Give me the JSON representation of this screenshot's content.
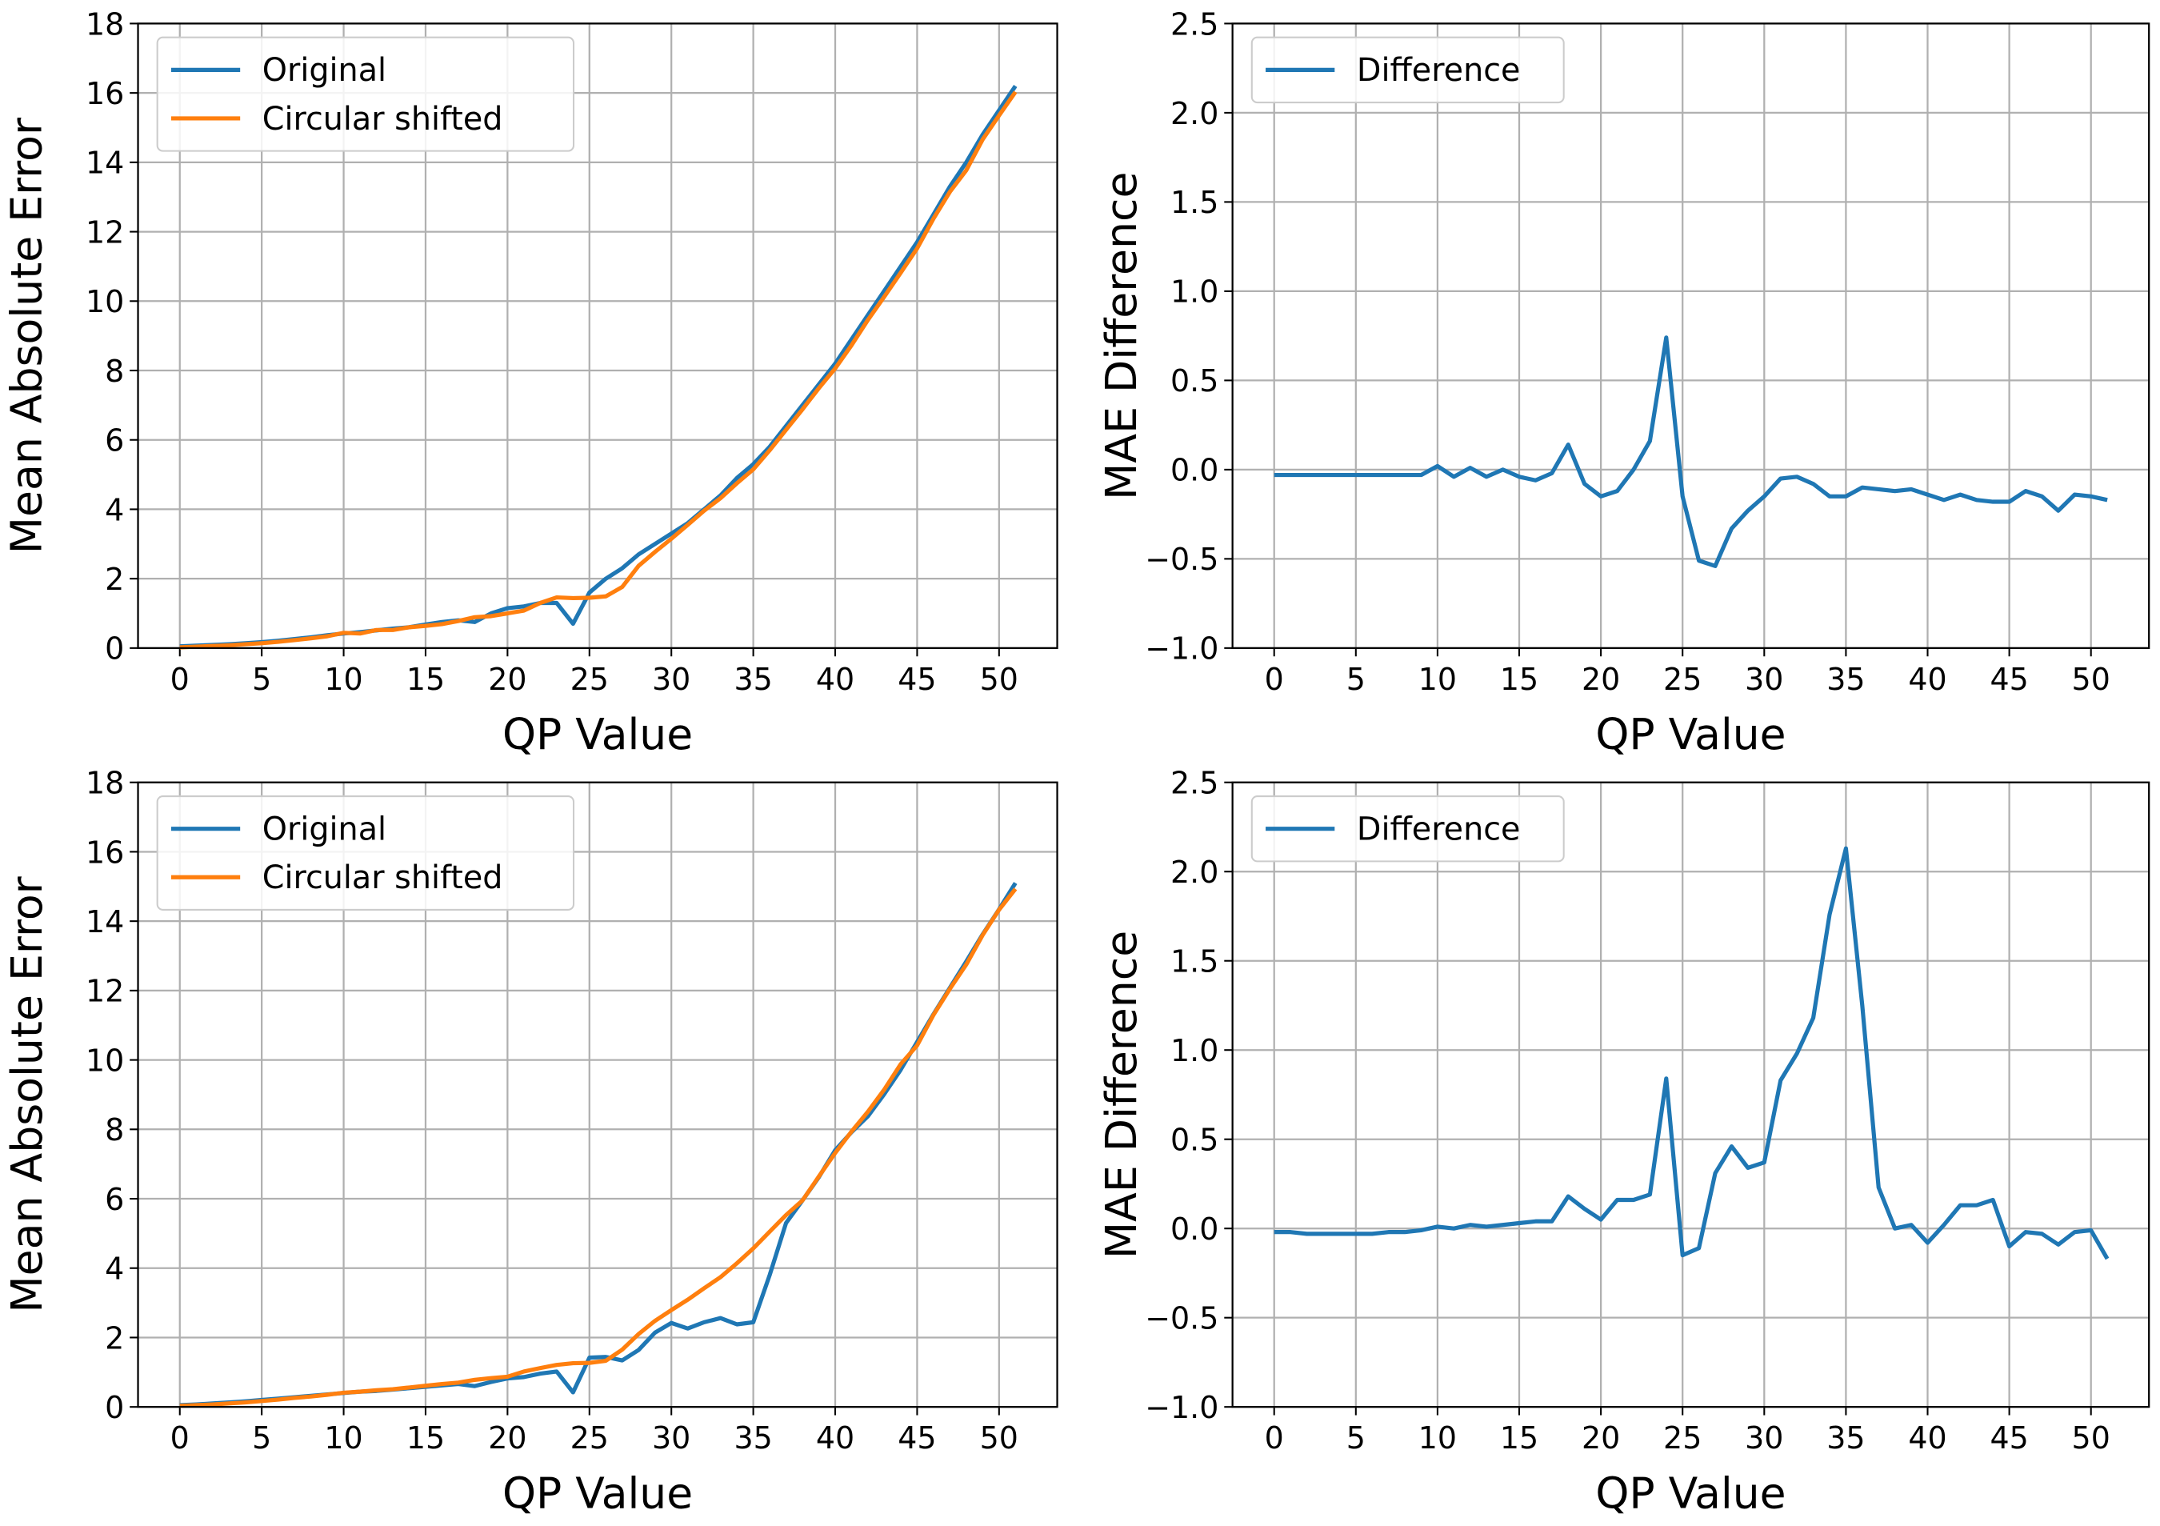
{
  "chart_data": [
    {
      "type": "line",
      "xlabel": "QP Value",
      "ylabel": "Mean Absolute Error",
      "x": [
        0,
        1,
        2,
        3,
        4,
        5,
        6,
        7,
        8,
        9,
        10,
        11,
        12,
        13,
        14,
        15,
        16,
        17,
        18,
        19,
        20,
        21,
        22,
        23,
        24,
        25,
        26,
        27,
        28,
        29,
        30,
        31,
        32,
        33,
        34,
        35,
        36,
        37,
        38,
        39,
        40,
        41,
        42,
        43,
        44,
        45,
        46,
        47,
        48,
        49,
        50,
        51
      ],
      "series": [
        {
          "name": "Original",
          "color": "#1f77b4",
          "values": [
            0.05,
            0.07,
            0.09,
            0.11,
            0.14,
            0.17,
            0.21,
            0.26,
            0.31,
            0.37,
            0.42,
            0.46,
            0.51,
            0.56,
            0.6,
            0.68,
            0.75,
            0.8,
            0.75,
            1.0,
            1.15,
            1.2,
            1.3,
            1.3,
            0.7,
            1.6,
            2.0,
            2.3,
            2.7,
            3.0,
            3.3,
            3.6,
            4.0,
            4.4,
            4.9,
            5.3,
            5.8,
            6.4,
            7.0,
            7.6,
            8.2,
            8.9,
            9.6,
            10.3,
            11.0,
            11.7,
            12.5,
            13.3,
            14.0,
            14.8,
            15.5,
            16.2
          ]
        },
        {
          "name": "Circular shifted",
          "color": "#ff7f0e",
          "values": [
            0.02,
            0.04,
            0.06,
            0.08,
            0.11,
            0.14,
            0.18,
            0.23,
            0.28,
            0.34,
            0.44,
            0.42,
            0.52,
            0.52,
            0.6,
            0.64,
            0.69,
            0.78,
            0.89,
            0.92,
            1.0,
            1.08,
            1.3,
            1.46,
            1.44,
            1.45,
            1.49,
            1.76,
            2.37,
            2.77,
            3.15,
            3.55,
            3.96,
            4.32,
            4.75,
            5.15,
            5.7,
            6.29,
            6.88,
            7.49,
            8.06,
            8.73,
            9.46,
            10.13,
            10.82,
            11.52,
            12.38,
            13.15,
            13.77,
            14.66,
            15.35,
            16.03
          ]
        }
      ],
      "xlim": [
        -2.55,
        53.55
      ],
      "ylim": [
        0,
        18
      ],
      "xticks": [
        0,
        5,
        10,
        15,
        20,
        25,
        30,
        35,
        40,
        45,
        50
      ],
      "yticks": [
        0,
        2,
        4,
        6,
        8,
        10,
        12,
        14,
        16,
        18
      ],
      "grid": true,
      "legend": "upper left"
    },
    {
      "type": "line",
      "xlabel": "QP Value",
      "ylabel": "MAE Difference",
      "x": [
        0,
        1,
        2,
        3,
        4,
        5,
        6,
        7,
        8,
        9,
        10,
        11,
        12,
        13,
        14,
        15,
        16,
        17,
        18,
        19,
        20,
        21,
        22,
        23,
        24,
        25,
        26,
        27,
        28,
        29,
        30,
        31,
        32,
        33,
        34,
        35,
        36,
        37,
        38,
        39,
        40,
        41,
        42,
        43,
        44,
        45,
        46,
        47,
        48,
        49,
        50,
        51
      ],
      "series": [
        {
          "name": "Difference",
          "color": "#1f77b4",
          "values": [
            -0.03,
            -0.03,
            -0.03,
            -0.03,
            -0.03,
            -0.03,
            -0.03,
            -0.03,
            -0.03,
            -0.03,
            0.02,
            -0.04,
            0.01,
            -0.04,
            0.0,
            -0.04,
            -0.06,
            -0.02,
            0.14,
            -0.08,
            -0.15,
            -0.12,
            0.0,
            0.16,
            0.74,
            -0.15,
            -0.51,
            -0.54,
            -0.33,
            -0.23,
            -0.15,
            -0.05,
            -0.04,
            -0.08,
            -0.15,
            -0.15,
            -0.1,
            -0.11,
            -0.12,
            -0.11,
            -0.14,
            -0.17,
            -0.14,
            -0.17,
            -0.18,
            -0.18,
            -0.12,
            -0.15,
            -0.23,
            -0.14,
            -0.15,
            -0.17
          ]
        }
      ],
      "xlim": [
        -2.55,
        53.55
      ],
      "ylim": [
        -1,
        2.5
      ],
      "xticks": [
        0,
        5,
        10,
        15,
        20,
        25,
        30,
        35,
        40,
        45,
        50
      ],
      "yticks": [
        {
          "value": -1,
          "label": "−1.0"
        },
        {
          "value": -0.5,
          "label": "−0.5"
        },
        {
          "value": 0,
          "label": "0.0"
        },
        {
          "value": 0.5,
          "label": "0.5"
        },
        {
          "value": 1,
          "label": "1.0"
        },
        {
          "value": 1.5,
          "label": "1.5"
        },
        {
          "value": 2,
          "label": "2.0"
        },
        {
          "value": 2.5,
          "label": "2.5"
        }
      ],
      "grid": true,
      "legend": "upper left"
    },
    {
      "type": "line",
      "xlabel": "QP Value",
      "ylabel": "Mean Absolute Error",
      "x": [
        0,
        1,
        2,
        3,
        4,
        5,
        6,
        7,
        8,
        9,
        10,
        11,
        12,
        13,
        14,
        15,
        16,
        17,
        18,
        19,
        20,
        21,
        22,
        23,
        24,
        25,
        26,
        27,
        28,
        29,
        30,
        31,
        32,
        33,
        34,
        35,
        36,
        37,
        38,
        39,
        40,
        41,
        42,
        43,
        44,
        45,
        46,
        47,
        48,
        49,
        50,
        51
      ],
      "series": [
        {
          "name": "Original",
          "color": "#1f77b4",
          "values": [
            0.05,
            0.07,
            0.1,
            0.13,
            0.16,
            0.2,
            0.24,
            0.28,
            0.32,
            0.36,
            0.4,
            0.44,
            0.46,
            0.5,
            0.54,
            0.58,
            0.62,
            0.66,
            0.6,
            0.72,
            0.82,
            0.86,
            0.96,
            1.02,
            0.42,
            1.42,
            1.44,
            1.34,
            1.64,
            2.14,
            2.42,
            2.26,
            2.44,
            2.56,
            2.38,
            2.44,
            3.8,
            5.3,
            5.95,
            6.62,
            7.4,
            7.92,
            8.38,
            9.02,
            9.72,
            10.52,
            11.32,
            12.08,
            12.84,
            13.62,
            14.34,
            15.1
          ]
        },
        {
          "name": "Circular shifted",
          "color": "#ff7f0e",
          "values": [
            0.03,
            0.05,
            0.07,
            0.1,
            0.13,
            0.17,
            0.21,
            0.26,
            0.3,
            0.35,
            0.41,
            0.44,
            0.48,
            0.51,
            0.56,
            0.61,
            0.66,
            0.7,
            0.78,
            0.83,
            0.87,
            1.02,
            1.12,
            1.21,
            1.26,
            1.27,
            1.33,
            1.65,
            2.1,
            2.48,
            2.79,
            3.09,
            3.42,
            3.74,
            4.14,
            4.57,
            5.05,
            5.53,
            5.95,
            6.64,
            7.32,
            7.94,
            8.51,
            9.15,
            9.88,
            10.42,
            11.3,
            12.05,
            12.75,
            13.6,
            14.33,
            14.93
          ]
        }
      ],
      "xlim": [
        -2.55,
        53.55
      ],
      "ylim": [
        0,
        18
      ],
      "xticks": [
        0,
        5,
        10,
        15,
        20,
        25,
        30,
        35,
        40,
        45,
        50
      ],
      "yticks": [
        0,
        2,
        4,
        6,
        8,
        10,
        12,
        14,
        16,
        18
      ],
      "grid": true,
      "legend": "upper left"
    },
    {
      "type": "line",
      "xlabel": "QP Value",
      "ylabel": "MAE Difference",
      "x": [
        0,
        1,
        2,
        3,
        4,
        5,
        6,
        7,
        8,
        9,
        10,
        11,
        12,
        13,
        14,
        15,
        16,
        17,
        18,
        19,
        20,
        21,
        22,
        23,
        24,
        25,
        26,
        27,
        28,
        29,
        30,
        31,
        32,
        33,
        34,
        35,
        36,
        37,
        38,
        39,
        40,
        41,
        42,
        43,
        44,
        45,
        46,
        47,
        48,
        49,
        50,
        51
      ],
      "series": [
        {
          "name": "Difference",
          "color": "#1f77b4",
          "values": [
            -0.02,
            -0.02,
            -0.03,
            -0.03,
            -0.03,
            -0.03,
            -0.03,
            -0.02,
            -0.02,
            -0.01,
            0.01,
            0.0,
            0.02,
            0.01,
            0.02,
            0.03,
            0.04,
            0.04,
            0.18,
            0.11,
            0.05,
            0.16,
            0.16,
            0.19,
            0.84,
            -0.15,
            -0.11,
            0.31,
            0.46,
            0.34,
            0.37,
            0.83,
            0.98,
            1.18,
            1.76,
            2.13,
            1.25,
            0.23,
            0.0,
            0.02,
            -0.08,
            0.02,
            0.13,
            0.13,
            0.16,
            -0.1,
            -0.02,
            -0.03,
            -0.09,
            -0.02,
            -0.01,
            -0.17
          ]
        }
      ],
      "xlim": [
        -2.55,
        53.55
      ],
      "ylim": [
        -1,
        2.5
      ],
      "xticks": [
        0,
        5,
        10,
        15,
        20,
        25,
        30,
        35,
        40,
        45,
        50
      ],
      "yticks": [
        {
          "value": -1,
          "label": "−1.0"
        },
        {
          "value": -0.5,
          "label": "−0.5"
        },
        {
          "value": 0,
          "label": "0.0"
        },
        {
          "value": 0.5,
          "label": "0.5"
        },
        {
          "value": 1,
          "label": "1.0"
        },
        {
          "value": 1.5,
          "label": "1.5"
        },
        {
          "value": 2,
          "label": "2.0"
        },
        {
          "value": 2.5,
          "label": "2.5"
        }
      ],
      "grid": true,
      "legend": "upper left"
    }
  ]
}
